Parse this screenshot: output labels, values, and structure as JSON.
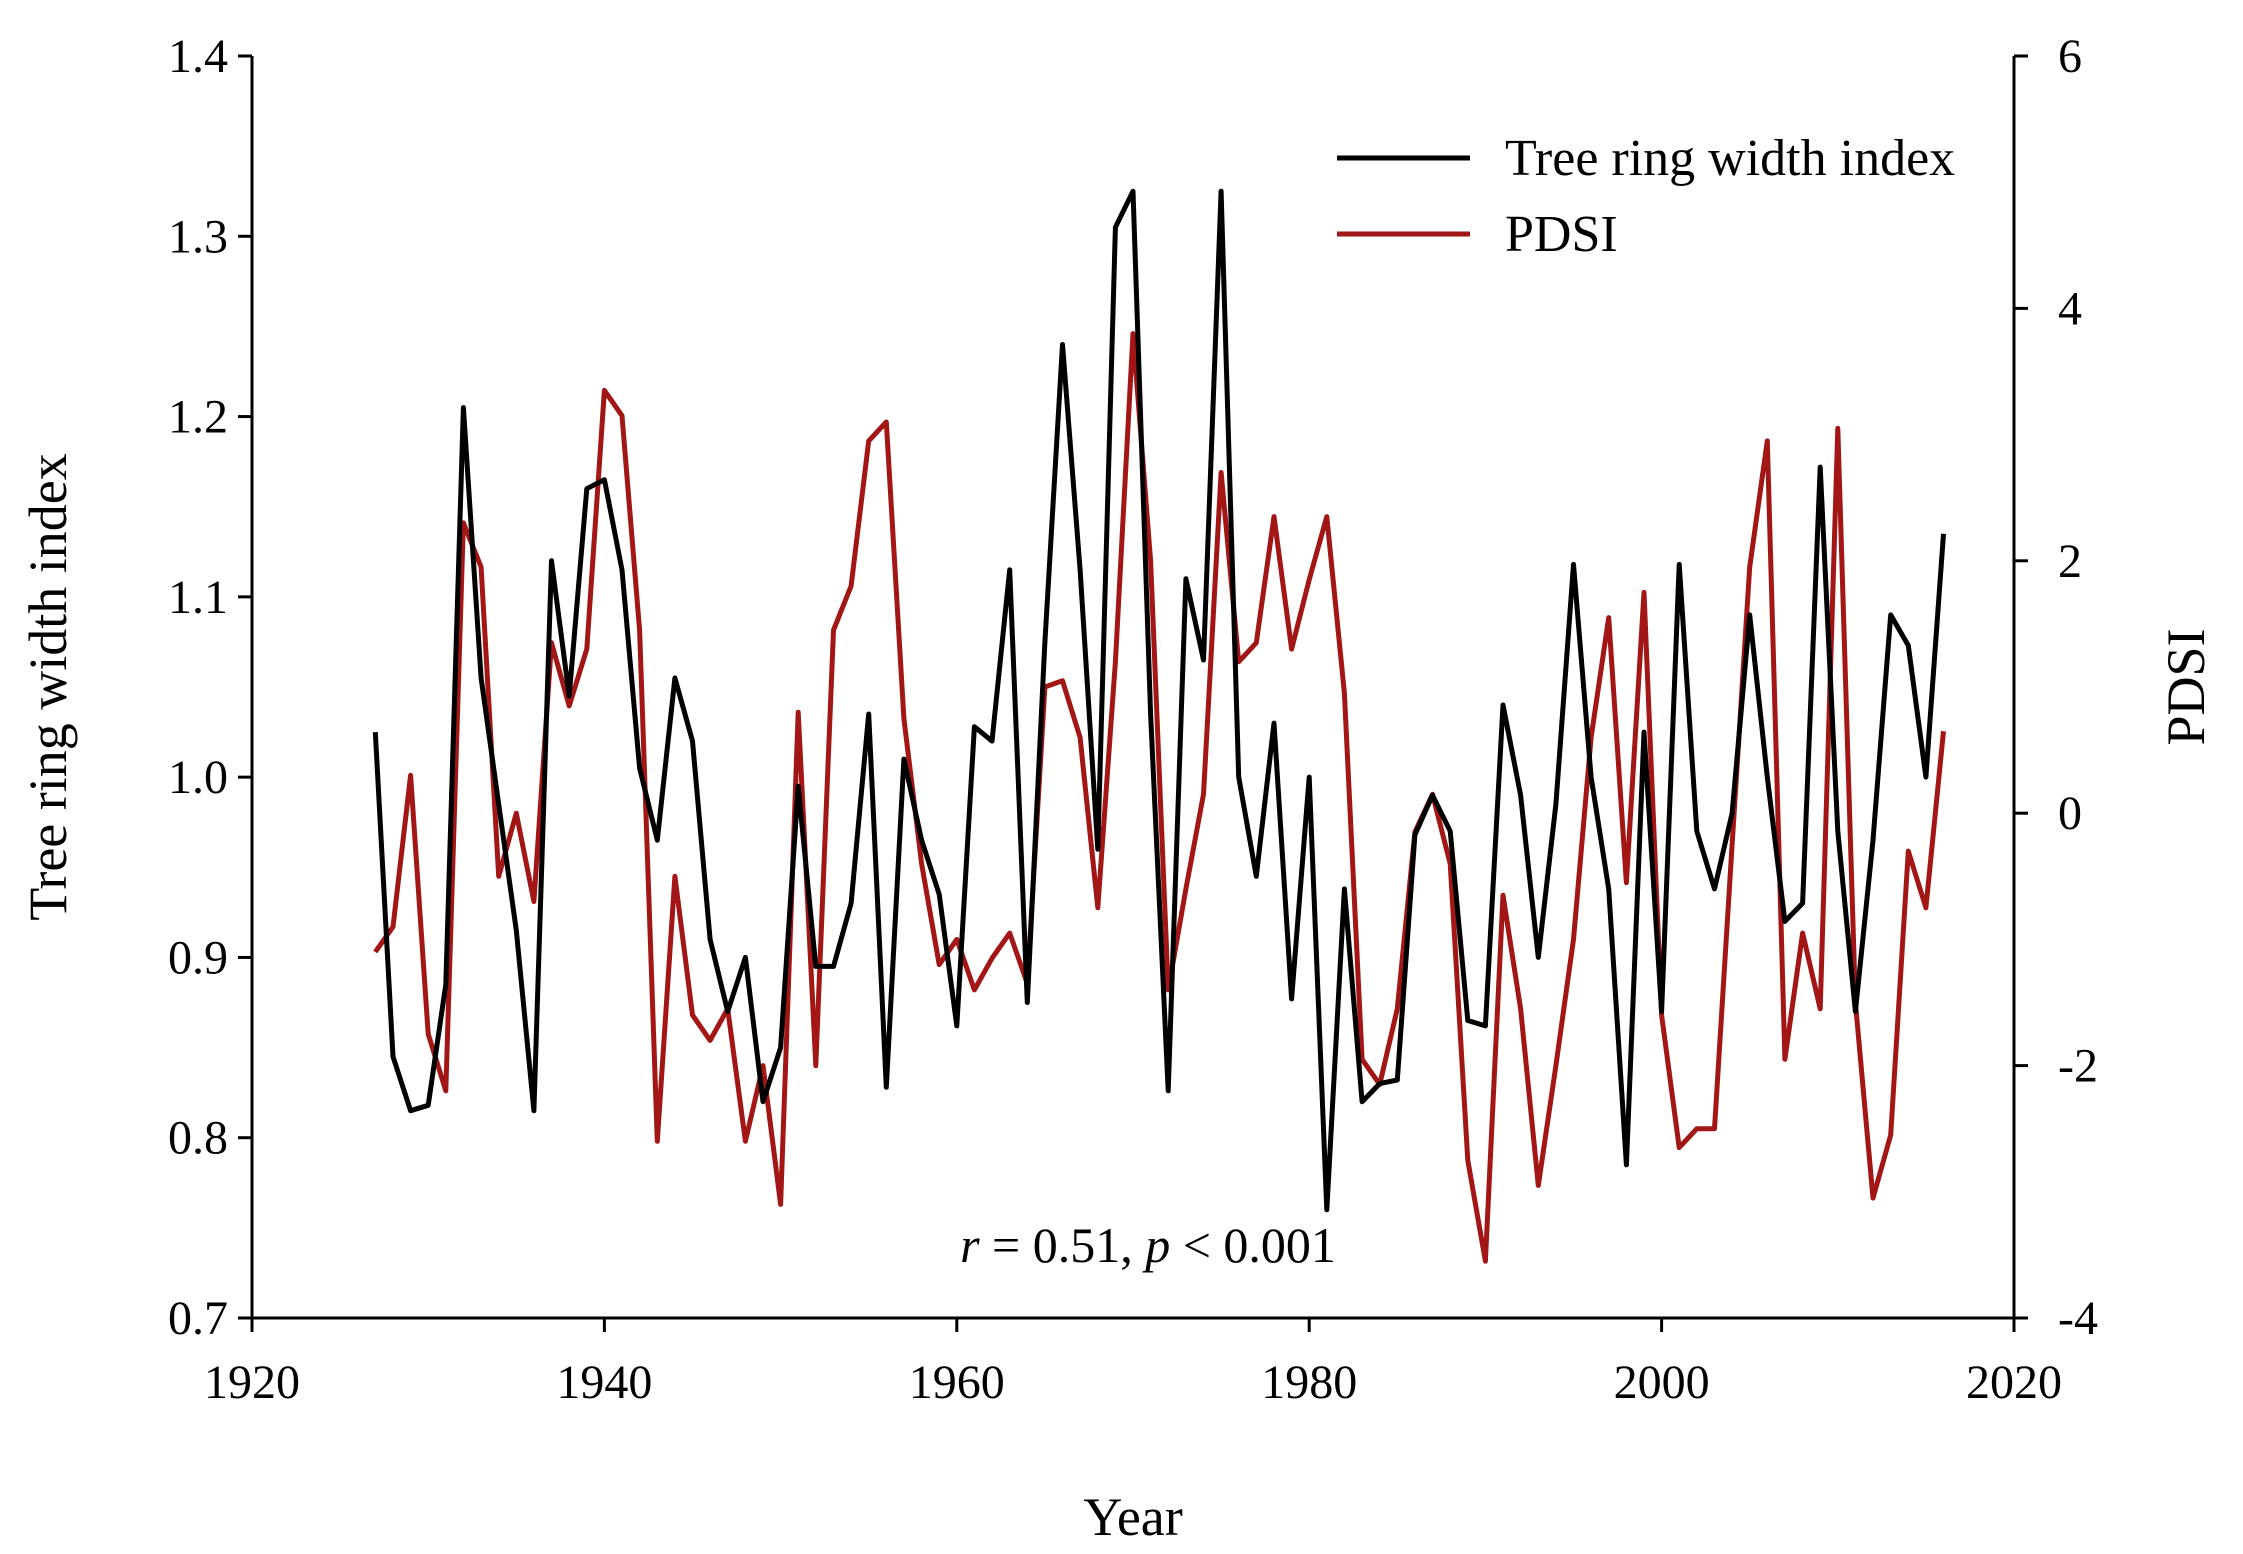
{
  "chart_data": {
    "type": "line",
    "xlabel": "Year",
    "ylabel": "Tree ring width index",
    "y2label": "PDSI",
    "xlim": [
      1920,
      2020
    ],
    "ylim": [
      0.7,
      1.4
    ],
    "y2lim": [
      -4,
      6
    ],
    "xticks": [
      1920,
      1940,
      1960,
      1980,
      2000,
      2020
    ],
    "yticks": [
      "0.7",
      "0.8",
      "0.9",
      "1.0",
      "1.1",
      "1.2",
      "1.3",
      "1.4"
    ],
    "y2ticks": [
      "-4",
      "-2",
      "0",
      "2",
      "4",
      "6"
    ],
    "legend_position": "top-right",
    "annotation": {
      "r_symbol": "r",
      "r_text": " = 0.51, ",
      "p_symbol": "p",
      "p_text": " < 0.001"
    },
    "x": [
      1927,
      1928,
      1929,
      1930,
      1931,
      1932,
      1933,
      1934,
      1935,
      1936,
      1937,
      1938,
      1939,
      1940,
      1941,
      1942,
      1943,
      1944,
      1945,
      1946,
      1947,
      1948,
      1949,
      1950,
      1951,
      1952,
      1953,
      1954,
      1955,
      1956,
      1957,
      1958,
      1959,
      1960,
      1961,
      1962,
      1963,
      1964,
      1965,
      1966,
      1967,
      1968,
      1969,
      1970,
      1971,
      1972,
      1973,
      1974,
      1975,
      1976,
      1977,
      1978,
      1979,
      1980,
      1981,
      1982,
      1983,
      1984,
      1985,
      1986,
      1987,
      1988,
      1989,
      1990,
      1991,
      1992,
      1993,
      1994,
      1995,
      1996,
      1997,
      1998,
      1999,
      2000,
      2001,
      2002,
      2003,
      2004,
      2005,
      2006,
      2007,
      2008,
      2009,
      2010,
      2011,
      2012,
      2013,
      2014,
      2015,
      2016
    ],
    "series": [
      {
        "name": "Tree ring width index",
        "axis": "left",
        "color": "#000000",
        "values": [
          1.025,
          0.845,
          0.815,
          0.818,
          0.885,
          1.205,
          1.055,
          0.985,
          0.915,
          0.815,
          1.12,
          1.045,
          1.16,
          1.165,
          1.115,
          1.005,
          0.965,
          1.055,
          1.02,
          0.91,
          0.87,
          0.9,
          0.82,
          0.85,
          0.995,
          0.895,
          0.895,
          0.93,
          1.035,
          0.828,
          1.01,
          0.965,
          0.935,
          0.862,
          1.028,
          1.02,
          1.115,
          0.875,
          1.075,
          1.24,
          1.115,
          0.96,
          1.305,
          1.325,
          1.035,
          0.826,
          1.11,
          1.065,
          1.325,
          1.0,
          0.945,
          1.03,
          0.877,
          1.0,
          0.76,
          0.938,
          0.82,
          0.83,
          0.832,
          0.968,
          0.99,
          0.97,
          0.865,
          0.862,
          1.04,
          0.99,
          0.9,
          0.985,
          1.118,
          1.0,
          0.938,
          0.785,
          1.025,
          0.87,
          1.118,
          0.97,
          0.938,
          0.98,
          1.09,
          1.0,
          0.92,
          0.93,
          1.172,
          0.97,
          0.87,
          0.965,
          1.09,
          1.073,
          1.0,
          1.135
        ]
      },
      {
        "name": "PDSI",
        "axis": "right",
        "color": "#a31616",
        "values": [
          -1.1,
          -0.9,
          0.3,
          -1.75,
          -2.2,
          2.3,
          1.95,
          -0.5,
          0.0,
          -0.7,
          1.35,
          0.85,
          1.3,
          3.35,
          3.15,
          1.45,
          -2.6,
          -0.5,
          -1.6,
          -1.8,
          -1.55,
          -2.6,
          -2.0,
          -3.1,
          0.8,
          -2.0,
          1.45,
          1.8,
          2.95,
          3.1,
          0.75,
          -0.4,
          -1.2,
          -1.0,
          -1.4,
          -1.15,
          -0.95,
          -1.35,
          1.0,
          1.05,
          0.6,
          -0.75,
          1.2,
          3.8,
          2.0,
          -1.4,
          -0.6,
          0.15,
          2.7,
          1.2,
          1.35,
          2.35,
          1.3,
          1.85,
          2.35,
          0.95,
          -1.95,
          -2.15,
          -1.55,
          -0.15,
          0.15,
          -0.4,
          -2.75,
          -3.55,
          -0.65,
          -1.55,
          -2.95,
          -2.0,
          -1.0,
          0.6,
          1.55,
          -0.55,
          1.75,
          -1.6,
          -2.65,
          -2.5,
          -2.5,
          -0.25,
          1.95,
          2.95,
          -1.95,
          -0.95,
          -1.55,
          3.05,
          -1.5,
          -3.05,
          -2.55,
          -0.3,
          -0.75,
          0.65
        ]
      }
    ]
  }
}
